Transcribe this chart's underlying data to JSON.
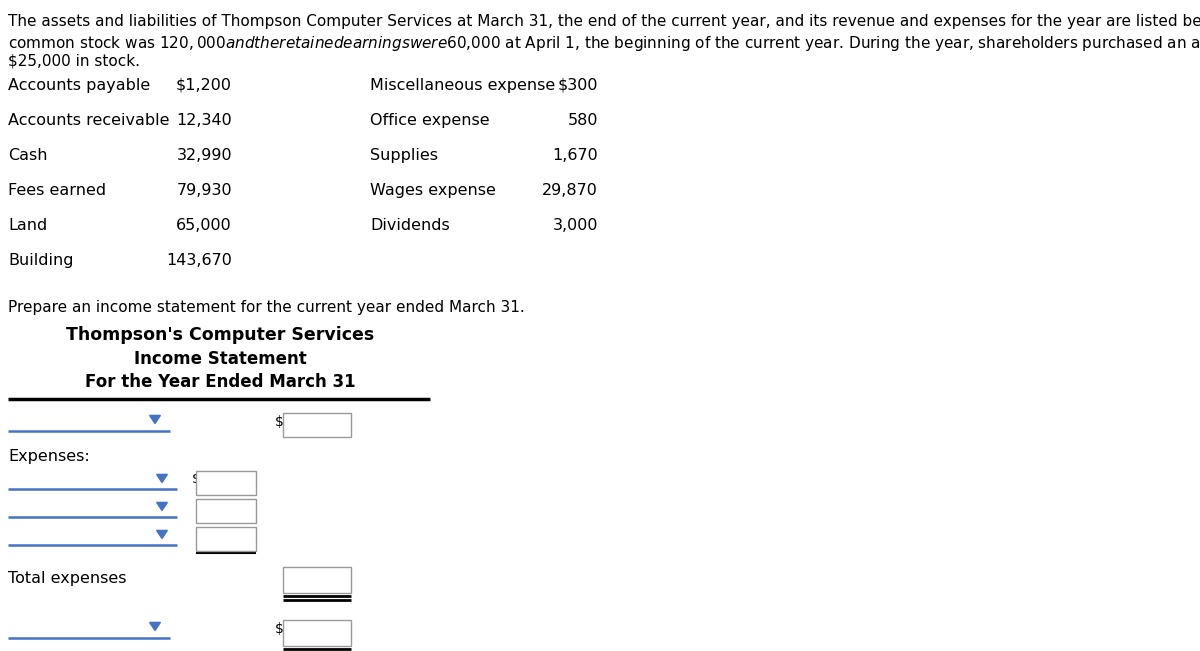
{
  "bg_color": "#ffffff",
  "intro_text_lines": [
    "The assets and liabilities of Thompson Computer Services at March 31, the end of the current year, and its revenue and expenses for the year are listed below. The",
    "common stock was $120,000 and the retained earnings were $60,000 at April 1, the beginning of the current year. During the year, shareholders purchased an additional",
    "$25,000 in stock."
  ],
  "table_left": [
    [
      "Accounts payable",
      "$1,200"
    ],
    [
      "Accounts receivable",
      "12,340"
    ],
    [
      "Cash",
      "32,990"
    ],
    [
      "Fees earned",
      "79,930"
    ],
    [
      "Land",
      "65,000"
    ],
    [
      "Building",
      "143,670"
    ]
  ],
  "table_right": [
    [
      "Miscellaneous expense",
      "$300"
    ],
    [
      "Office expense",
      "580"
    ],
    [
      "Supplies",
      "1,670"
    ],
    [
      "Wages expense",
      "29,870"
    ],
    [
      "Dividends",
      "3,000"
    ]
  ],
  "prepare_text": "Prepare an income statement for the current year ended March 31.",
  "company_name": "Thompson's Computer Services",
  "statement_title": "Income Statement",
  "period": "For the Year Ended March 31",
  "expenses_label": "Expenses:",
  "total_expenses_label": "Total expenses",
  "text_color": "#000000",
  "blue_line_color": "#4472C4",
  "box_border_color": "#999999",
  "dropdown_color": "#4472C4",
  "font_size_intro": 11.0,
  "font_size_table": 11.5,
  "font_size_headings_company": 12.5,
  "font_size_headings": 12.0,
  "font_size_prepare": 11.0,
  "font_size_small": 10.0
}
